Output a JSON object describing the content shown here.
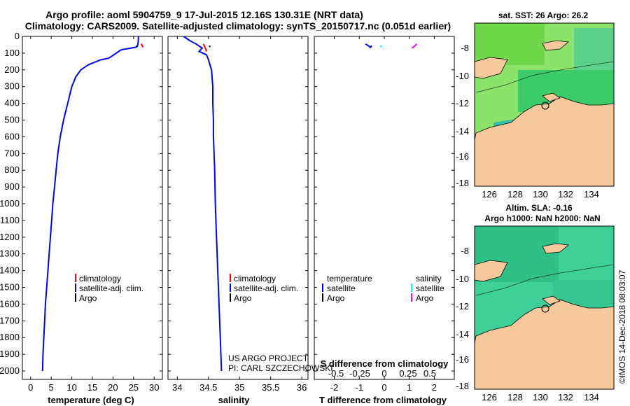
{
  "header": {
    "title_line1": "Argo profile: aoml 5904759_9 17-Jul-2015 12.16S 130.31E (NRT data)",
    "title_line2": "Climatology: CARS2009. Satellite-adjusted climatology: synTS_20150717.nc (0.051d earlier)"
  },
  "chart_data": [
    {
      "type": "line",
      "xlabel": "temperature (deg C)",
      "ylabel": "",
      "xlim": [
        -2,
        32
      ],
      "ylim": [
        2050,
        0
      ],
      "xticks": [
        0,
        5,
        10,
        15,
        20,
        25,
        30
      ],
      "yticks": [
        0,
        100,
        200,
        300,
        400,
        500,
        600,
        700,
        800,
        900,
        1000,
        1100,
        1200,
        1300,
        1400,
        1500,
        1600,
        1700,
        1800,
        1900,
        2000
      ],
      "legend": [
        "climatology",
        "satellite-adj. clim.",
        "Argo"
      ],
      "colors": {
        "climatology": "#ff0000",
        "satellite": "#0000ff",
        "argo": "#000000"
      },
      "series": [
        {
          "name": "satellite-adj. clim.",
          "points": [
            [
              26.2,
              0
            ],
            [
              26.1,
              40
            ],
            [
              25.9,
              60
            ],
            [
              25.5,
              65
            ],
            [
              22,
              80
            ],
            [
              19,
              130
            ],
            [
              17,
              140
            ],
            [
              14,
              170
            ],
            [
              12.2,
              200
            ],
            [
              11,
              240
            ],
            [
              10,
              300
            ],
            [
              9,
              400
            ],
            [
              8,
              500
            ],
            [
              7.2,
              600
            ],
            [
              6.6,
              700
            ],
            [
              6.2,
              800
            ],
            [
              5.8,
              900
            ],
            [
              5.4,
              1000
            ],
            [
              5.1,
              1100
            ],
            [
              4.8,
              1200
            ],
            [
              4.5,
              1300
            ],
            [
              4.2,
              1400
            ],
            [
              3.9,
              1500
            ],
            [
              3.6,
              1600
            ],
            [
              3.4,
              1700
            ],
            [
              3.2,
              1800
            ],
            [
              3.0,
              1900
            ],
            [
              2.9,
              2000
            ]
          ]
        },
        {
          "name": "climatology",
          "points": [
            [
              26.8,
              45
            ],
            [
              27.0,
              50
            ],
            [
              27.2,
              60
            ],
            [
              27.3,
              65
            ]
          ]
        },
        {
          "name": "Argo",
          "points": [
            [
              25.8,
              55
            ],
            [
              25.8,
              65
            ]
          ]
        }
      ]
    },
    {
      "type": "line",
      "xlabel": "salinity",
      "xlim": [
        33.85,
        36.1
      ],
      "ylim": [
        2050,
        0
      ],
      "xticks": [
        34,
        34.5,
        35,
        35.5,
        36
      ],
      "legend": [
        "climatology",
        "satellite-adj. clim.",
        "Argo"
      ],
      "annotations": [
        "US ARGO PROJECT",
        "PI: CARL SZCZECHOWSKI"
      ],
      "series": [
        {
          "name": "satellite-adj. clim.",
          "points": [
            [
              34.1,
              0
            ],
            [
              34.2,
              25
            ],
            [
              34.3,
              45
            ],
            [
              34.4,
              70
            ],
            [
              34.35,
              90
            ],
            [
              34.47,
              110
            ],
            [
              34.5,
              140
            ],
            [
              34.55,
              200
            ],
            [
              34.57,
              300
            ],
            [
              34.57,
              400
            ],
            [
              34.58,
              500
            ],
            [
              34.58,
              600
            ],
            [
              34.59,
              700
            ],
            [
              34.6,
              800
            ],
            [
              34.61,
              1000
            ],
            [
              34.63,
              1200
            ],
            [
              34.65,
              1400
            ],
            [
              34.67,
              1600
            ],
            [
              34.69,
              1800
            ],
            [
              34.71,
              2000
            ]
          ]
        },
        {
          "name": "climatology",
          "points": [
            [
              34.42,
              45
            ],
            [
              34.45,
              70
            ],
            [
              34.47,
              90
            ]
          ]
        },
        {
          "name": "Argo",
          "points": [
            [
              34.52,
              55
            ],
            [
              34.52,
              65
            ]
          ]
        }
      ]
    },
    {
      "type": "line",
      "xlabel": "T difference from climatology",
      "x2label": "S difference from climatology",
      "xlim": [
        -2.8,
        2.8
      ],
      "ylim": [
        2050,
        0
      ],
      "xticks": [
        -2,
        -1,
        0,
        1,
        2
      ],
      "x2ticks_text": [
        "-0.5",
        "-0.25",
        "0",
        "0.25",
        "0.5"
      ],
      "legend_headers": [
        "temperature",
        "salinity"
      ],
      "legend": [
        "satellite",
        "Argo",
        "satellite",
        "Argo"
      ],
      "colors": {
        "t_sat": "#0000ff",
        "t_argo": "#000000",
        "s_sat": "#00ffff",
        "s_argo": "#ff00ff"
      },
      "series": [
        {
          "name": "T satellite",
          "points": [
            [
              -0.75,
              45
            ],
            [
              -0.6,
              60
            ],
            [
              -0.55,
              70
            ]
          ]
        },
        {
          "name": "T Argo",
          "points": [
            [
              -0.52,
              55
            ],
            [
              -0.52,
              65
            ]
          ]
        },
        {
          "name": "S satellite",
          "points": [
            [
              -0.15,
              55
            ],
            [
              -0.12,
              65
            ]
          ]
        },
        {
          "name": "S Argo",
          "points": [
            [
              1.3,
              45
            ],
            [
              1.2,
              60
            ],
            [
              1.1,
              70
            ]
          ]
        }
      ]
    }
  ],
  "maps": [
    {
      "title": "sat. SST: 26 Argo: 26.2",
      "xticks": [
        "126",
        "128",
        "130",
        "132",
        "134"
      ],
      "yticks": [
        "-8",
        "-10",
        "-12",
        "-14",
        "-16",
        "-18"
      ]
    },
    {
      "title_line1": "Altim. SLA: -0.16",
      "title_line2": "Argo h1000: NaN h2000: NaN",
      "xticks": [
        "126",
        "128",
        "130",
        "132",
        "134"
      ],
      "yticks": [
        "-8",
        "-10",
        "-12",
        "-14",
        "-16",
        "-18"
      ]
    }
  ],
  "stamp": "©IMOS 14-Dec-2018 08:03:07"
}
